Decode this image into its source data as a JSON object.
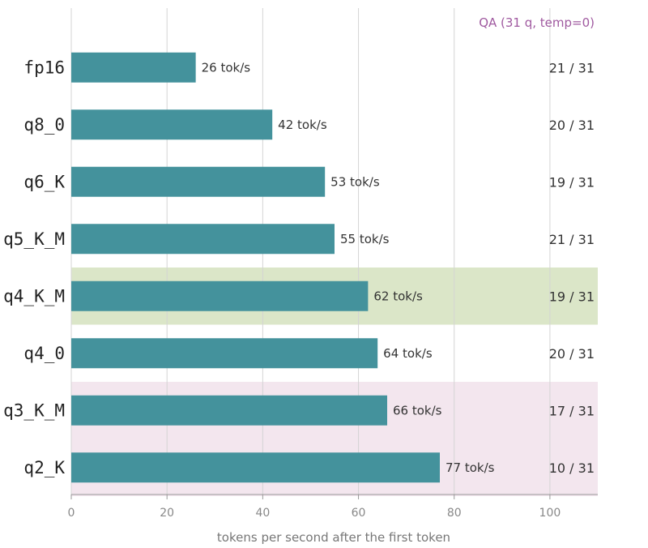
{
  "chart_data": {
    "type": "bar",
    "orientation": "horizontal",
    "categories": [
      "fp16",
      "q8_0",
      "q6_K",
      "q5_K_M",
      "q4_K_M",
      "q4_0",
      "q3_K_M",
      "q2_K"
    ],
    "values": [
      26,
      42,
      53,
      55,
      62,
      64,
      66,
      77
    ],
    "value_labels": [
      "26 tok/s",
      "42 tok/s",
      "53 tok/s",
      "55 tok/s",
      "62 tok/s",
      "64 tok/s",
      "66 tok/s",
      "77 tok/s"
    ],
    "qa_scores": [
      "21 / 31",
      "20 / 31",
      "19 / 31",
      "21 / 31",
      "19 / 31",
      "20 / 31",
      "17 / 31",
      "10 / 31"
    ],
    "qa_header": "QA (31 q, temp=0)",
    "xlabel": "tokens per second after the first token",
    "xticks": [
      0,
      20,
      40,
      60,
      80,
      100
    ],
    "xlim": [
      0,
      110
    ],
    "grid": "vertical",
    "highlights": [
      {
        "categories": [
          "q4_K_M"
        ],
        "color": "#dbe6c8"
      },
      {
        "categories": [
          "q3_K_M",
          "q2_K"
        ],
        "color": "#f3e6ee"
      }
    ],
    "colors": {
      "bar": "#44929c",
      "grid": "#d4d4d4",
      "axis": "#999999",
      "qa_header": "#a05aa0"
    }
  }
}
